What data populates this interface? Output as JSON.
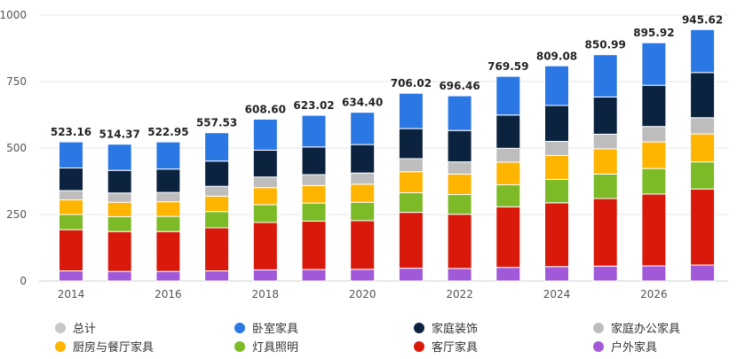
{
  "chart_data": {
    "type": "bar",
    "stacked": true,
    "categories": [
      "2014",
      "2015",
      "2016",
      "2017",
      "2018",
      "2019",
      "2020",
      "2021",
      "2022",
      "2023",
      "2024",
      "2025",
      "2026",
      "2027"
    ],
    "x_tick_labels": [
      "2014",
      "2016",
      "2018",
      "2020",
      "2022",
      "2024",
      "2026"
    ],
    "totals": [
      523.16,
      514.37,
      522.95,
      557.53,
      608.6,
      623.02,
      634.4,
      706.02,
      696.46,
      769.59,
      809.08,
      850.99,
      895.92,
      945.62
    ],
    "total_labels": [
      "523.16",
      "514.37",
      "522.95",
      "557.53",
      "608.60",
      "623.02",
      "634.40",
      "706.02",
      "696.46",
      "769.59",
      "809.08",
      "850.99",
      "895.92",
      "945.62"
    ],
    "ylim": [
      0,
      1000
    ],
    "y_ticks": [
      0,
      250,
      500,
      750,
      1000
    ],
    "grid": true,
    "legend_position": "bottom",
    "series": [
      {
        "name": "户外家具",
        "color": "#a259d9",
        "values": [
          38,
          36,
          36,
          38,
          42,
          43,
          44,
          48,
          47,
          51,
          54,
          56,
          57,
          60
        ]
      },
      {
        "name": "客厅家具",
        "color": "#d91a0a",
        "values": [
          155,
          150,
          150,
          162,
          178,
          182,
          183,
          210,
          204,
          228,
          240,
          254,
          270,
          286
        ]
      },
      {
        "name": "灯具照明",
        "color": "#7cbb27",
        "values": [
          57,
          56,
          57,
          61,
          67,
          68,
          69,
          74,
          74,
          83,
          88,
          92,
          96,
          102
        ]
      },
      {
        "name": "厨房与餐厅家具",
        "color": "#ffb400",
        "values": [
          55,
          54,
          55,
          58,
          64,
          66,
          68,
          79,
          77,
          85,
          90,
          95,
          100,
          105
        ]
      },
      {
        "name": "家庭办公家具",
        "color": "#bdbdbd",
        "values": [
          35,
          35,
          35,
          37,
          40,
          41,
          42,
          49,
          46,
          52,
          53,
          55,
          58,
          61
        ]
      },
      {
        "name": "家庭装饰",
        "color": "#0c2340",
        "values": [
          85,
          85,
          88,
          95,
          101,
          104,
          107,
          113,
          118,
          125,
          135,
          140,
          155,
          170
        ]
      },
      {
        "name": "卧室家具",
        "color": "#2b78e4",
        "values": [
          98.16,
          98.37,
          101.95,
          106.53,
          116.6,
          119.02,
          121.4,
          133.02,
          130.46,
          145.59,
          149.08,
          158.99,
          159.92,
          161.62
        ]
      }
    ],
    "legend": [
      {
        "name": "总计",
        "color": "#c7c7c7"
      },
      {
        "name": "卧室家具",
        "color": "#2b78e4"
      },
      {
        "name": "家庭装饰",
        "color": "#0c2340"
      },
      {
        "name": "家庭办公家具",
        "color": "#bdbdbd"
      },
      {
        "name": "厨房与餐厅家具",
        "color": "#ffb400"
      },
      {
        "name": "灯具照明",
        "color": "#7cbb27"
      },
      {
        "name": "客厅家具",
        "color": "#d91a0a"
      },
      {
        "name": "户外家具",
        "color": "#a259d9"
      }
    ]
  }
}
